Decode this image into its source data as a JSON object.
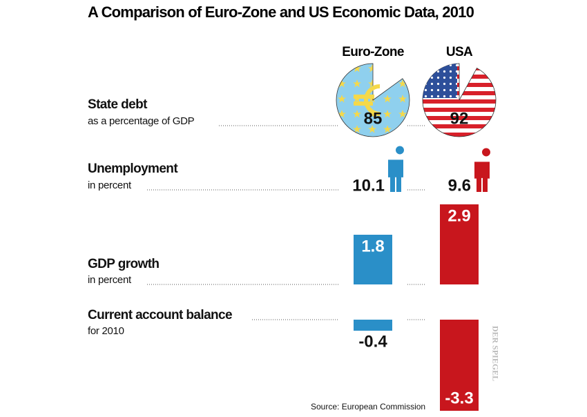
{
  "title": "A Comparison of Euro-Zone and US Economic Data, 2010",
  "columns": [
    "Euro-Zone",
    "USA"
  ],
  "colors": [
    "#2a8fc8",
    "#c8161d"
  ],
  "rows": [
    {
      "label": "State debt",
      "sublabel": "as a percentage of GDP",
      "type": "pie",
      "values": [
        85,
        92
      ]
    },
    {
      "label": "Unemployment",
      "sublabel": "in percent",
      "type": "figure",
      "values": [
        10.1,
        9.6
      ]
    },
    {
      "label": "GDP growth",
      "sublabel": "in percent",
      "type": "bar",
      "values": [
        1.8,
        2.9
      ]
    },
    {
      "label": "Current account balance",
      "sublabel": "for 2010",
      "type": "bar",
      "values": [
        -0.4,
        -3.3
      ]
    }
  ],
  "credit": "DER SPIEGEL",
  "source": "Source: European Commission"
}
